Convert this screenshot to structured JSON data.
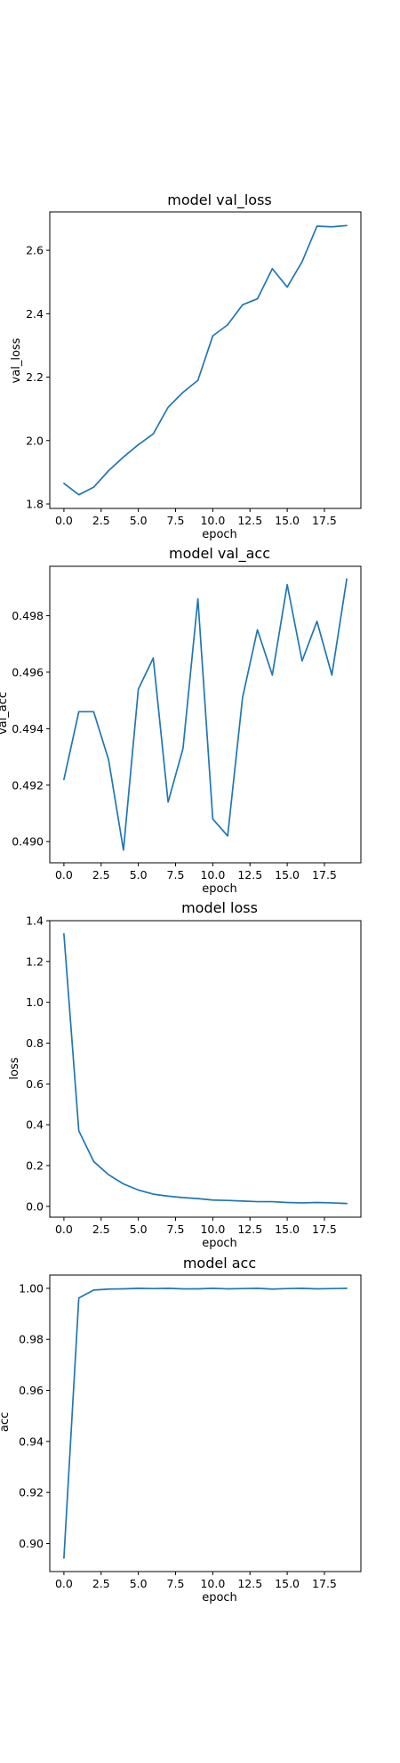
{
  "chart_data": [
    {
      "type": "line",
      "title": "model val_loss",
      "xlabel": "epoch",
      "ylabel": "val_loss",
      "x": [
        0,
        1,
        2,
        3,
        4,
        5,
        6,
        7,
        8,
        9,
        10,
        11,
        12,
        13,
        14,
        15,
        16,
        17,
        18,
        19
      ],
      "series": [
        {
          "values": [
            1.865,
            1.829,
            1.853,
            1.905,
            1.948,
            1.987,
            2.021,
            2.105,
            2.152,
            2.19,
            2.33,
            2.365,
            2.428,
            2.447,
            2.542,
            2.484,
            2.564,
            2.676,
            2.674,
            2.678
          ]
        }
      ],
      "xlim": [
        -0.95,
        19.95
      ],
      "ylim": [
        1.786,
        2.721
      ],
      "xticks": [
        0,
        2.5,
        5,
        7.5,
        10,
        12.5,
        15,
        17.5
      ],
      "xtick_labels": [
        "0.0",
        "2.5",
        "5.0",
        "7.5",
        "10.0",
        "12.5",
        "15.0",
        "17.5"
      ],
      "yticks": [
        1.8,
        2.0,
        2.2,
        2.4,
        2.6
      ],
      "ytick_labels": [
        "1.8",
        "2.0",
        "2.2",
        "2.4",
        "2.6"
      ],
      "color": "#1f77b4"
    },
    {
      "type": "line",
      "title": "model val_acc",
      "xlabel": "epoch",
      "ylabel": "val_acc",
      "x": [
        0,
        1,
        2,
        3,
        4,
        5,
        6,
        7,
        8,
        9,
        10,
        11,
        12,
        13,
        14,
        15,
        16,
        17,
        18,
        19
      ],
      "series": [
        {
          "values": [
            0.4922,
            0.4946,
            0.4946,
            0.4929,
            0.4897,
            0.4954,
            0.4965,
            0.4914,
            0.4933,
            0.4986,
            0.4908,
            0.4902,
            0.4951,
            0.4975,
            0.4959,
            0.4991,
            0.4964,
            0.4978,
            0.4959,
            0.4993
          ]
        }
      ],
      "xlim": [
        -0.95,
        19.95
      ],
      "ylim": [
        0.48925,
        0.49975
      ],
      "xticks": [
        0,
        2.5,
        5,
        7.5,
        10,
        12.5,
        15,
        17.5
      ],
      "xtick_labels": [
        "0.0",
        "2.5",
        "5.0",
        "7.5",
        "10.0",
        "12.5",
        "15.0",
        "17.5"
      ],
      "yticks": [
        0.49,
        0.492,
        0.494,
        0.496,
        0.498
      ],
      "ytick_labels": [
        "0.490",
        "0.492",
        "0.494",
        "0.496",
        "0.498"
      ],
      "color": "#1f77b4"
    },
    {
      "type": "line",
      "title": "model loss",
      "xlabel": "epoch",
      "ylabel": "loss",
      "x": [
        0,
        1,
        2,
        3,
        4,
        5,
        6,
        7,
        8,
        9,
        10,
        11,
        12,
        13,
        14,
        15,
        16,
        17,
        18,
        19
      ],
      "series": [
        {
          "values": [
            1.335,
            0.37,
            0.22,
            0.155,
            0.11,
            0.08,
            0.06,
            0.05,
            0.043,
            0.038,
            0.031,
            0.029,
            0.026,
            0.023,
            0.023,
            0.019,
            0.017,
            0.019,
            0.017,
            0.014
          ]
        }
      ],
      "xlim": [
        -0.95,
        19.95
      ],
      "ylim": [
        -0.053,
        1.4
      ],
      "xticks": [
        0,
        2.5,
        5,
        7.5,
        10,
        12.5,
        15,
        17.5
      ],
      "xtick_labels": [
        "0.0",
        "2.5",
        "5.0",
        "7.5",
        "10.0",
        "12.5",
        "15.0",
        "17.5"
      ],
      "yticks": [
        0,
        0.2,
        0.4,
        0.6,
        0.8,
        1.0,
        1.2,
        1.4
      ],
      "ytick_labels": [
        "0.0",
        "0.2",
        "0.4",
        "0.6",
        "0.8",
        "1.0",
        "1.2",
        "1.4"
      ],
      "color": "#1f77b4"
    },
    {
      "type": "line",
      "title": "model acc",
      "xlabel": "epoch",
      "ylabel": "acc",
      "x": [
        0,
        1,
        2,
        3,
        4,
        5,
        6,
        7,
        8,
        9,
        10,
        11,
        12,
        13,
        14,
        15,
        16,
        17,
        18,
        19
      ],
      "series": [
        {
          "values": [
            0.8943,
            0.9962,
            0.9993,
            0.9997,
            0.9998,
            1.0,
            0.9999,
            1.0,
            0.9998,
            0.9998,
            1.0,
            0.9998,
            0.9999,
            1.0,
            0.9997,
            0.9999,
            1.0,
            0.9998,
            0.9999,
            1.0
          ]
        }
      ],
      "xlim": [
        -0.95,
        19.95
      ],
      "ylim": [
        0.889,
        1.0052
      ],
      "xticks": [
        0,
        2.5,
        5,
        7.5,
        10,
        12.5,
        15,
        17.5
      ],
      "xtick_labels": [
        "0.0",
        "2.5",
        "5.0",
        "7.5",
        "10.0",
        "12.5",
        "15.0",
        "17.5"
      ],
      "yticks": [
        0.9,
        0.92,
        0.94,
        0.96,
        0.98,
        1.0
      ],
      "ytick_labels": [
        "0.90",
        "0.92",
        "0.94",
        "0.96",
        "0.98",
        "1.00"
      ],
      "color": "#1f77b4"
    }
  ]
}
